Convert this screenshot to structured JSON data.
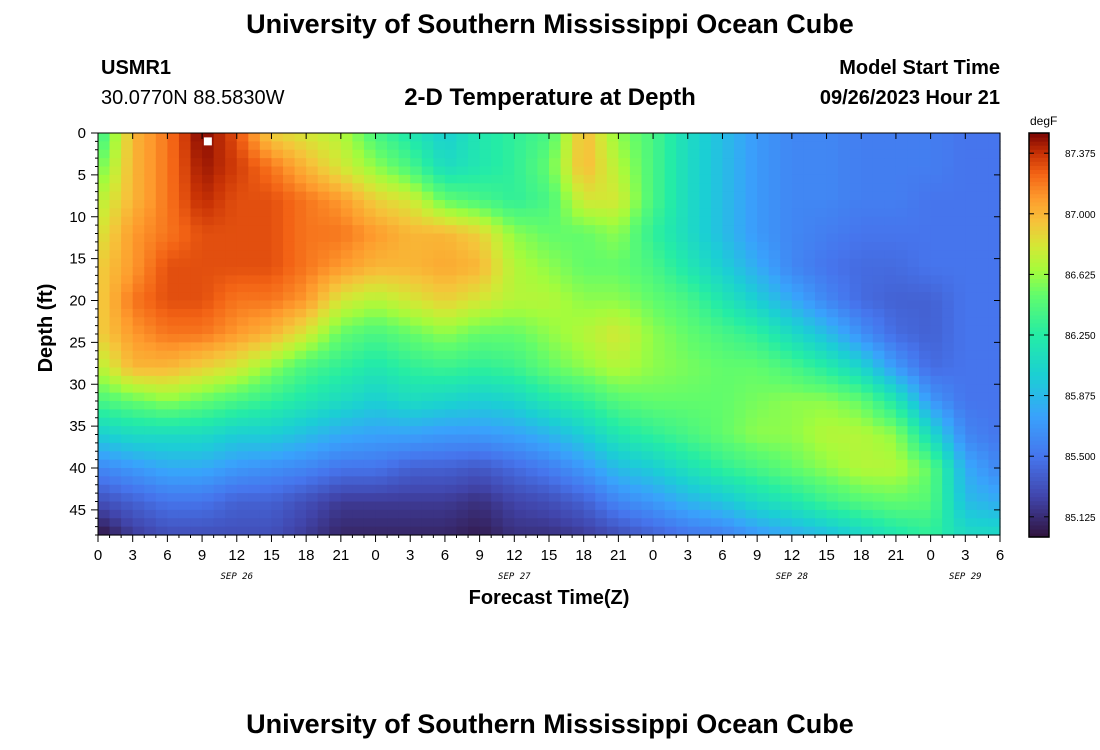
{
  "header": {
    "title": "University of Southern Mississippi Ocean Cube",
    "station_id": "USMR1",
    "station_coords": "30.0770N  88.5830W",
    "subtitle": "2-D Temperature at Depth",
    "model_start_label": "Model Start Time",
    "model_start_value": "09/26/2023 Hour 21"
  },
  "footer": {
    "title": "University of Southern Mississippi Ocean Cube"
  },
  "chart_data": {
    "type": "heatmap",
    "title": "2-D Temperature at Depth",
    "xlabel": "Forecast Time(Z)",
    "ylabel": "Depth (ft)",
    "x_range_hours": [
      0,
      78
    ],
    "y_range_ft": [
      0,
      48
    ],
    "x_tick_labels": [
      "0",
      "3",
      "6",
      "9",
      "12",
      "15",
      "18",
      "21",
      "0",
      "3",
      "6",
      "9",
      "12",
      "15",
      "18",
      "21",
      "0",
      "3",
      "6",
      "9",
      "12",
      "15",
      "18",
      "21",
      "0",
      "3",
      "6"
    ],
    "y_tick_labels": [
      "0",
      "5",
      "10",
      "15",
      "20",
      "25",
      "30",
      "35",
      "40",
      "45"
    ],
    "date_labels": [
      {
        "label": "SEP 26",
        "hour": 12
      },
      {
        "label": "SEP 27",
        "hour": 36
      },
      {
        "label": "SEP 28",
        "hour": 60
      },
      {
        "label": "SEP 29",
        "hour": 75
      }
    ],
    "colorbar": {
      "unit": "degF",
      "min": 85.0,
      "max": 87.5,
      "tick_labels": [
        "87.375",
        "87.000",
        "86.625",
        "86.250",
        "85.875",
        "85.500",
        "85.125"
      ]
    },
    "marker": {
      "hour": 9.5,
      "depth_ft": 1
    },
    "grid": false,
    "note": "Temperature field sampled as depth profiles (degF) at given forecast hours; depths 0,4,8,12,16,20,24,28,32,36,40,44,48 ft.",
    "profile_depths_ft": [
      0,
      4,
      8,
      12,
      16,
      20,
      24,
      28,
      32,
      36,
      40,
      44,
      48
    ],
    "profiles": [
      {
        "hour": 0,
        "values": [
          86.3,
          86.5,
          86.7,
          86.8,
          86.9,
          86.9,
          86.9,
          86.7,
          86.4,
          86.0,
          85.6,
          85.3,
          85.0
        ]
      },
      {
        "hour": 3,
        "values": [
          87.0,
          87.0,
          87.0,
          87.1,
          87.1,
          87.2,
          87.1,
          87.0,
          86.5,
          86.1,
          85.7,
          85.4,
          85.2
        ]
      },
      {
        "hour": 6,
        "values": [
          87.2,
          87.2,
          87.2,
          87.2,
          87.3,
          87.3,
          87.2,
          87.0,
          86.6,
          86.1,
          85.8,
          85.5,
          85.3
        ]
      },
      {
        "hour": 9,
        "values": [
          87.5,
          87.45,
          87.4,
          87.3,
          87.3,
          87.3,
          87.2,
          86.9,
          86.5,
          86.1,
          85.8,
          85.5,
          85.3
        ]
      },
      {
        "hour": 12,
        "values": [
          87.3,
          87.35,
          87.3,
          87.3,
          87.3,
          87.2,
          87.1,
          86.8,
          86.4,
          86.0,
          85.7,
          85.4,
          85.3
        ]
      },
      {
        "hour": 15,
        "values": [
          86.9,
          87.2,
          87.3,
          87.3,
          87.3,
          87.2,
          87.0,
          86.6,
          86.3,
          86.0,
          85.65,
          85.4,
          85.3
        ]
      },
      {
        "hour": 18,
        "values": [
          86.8,
          87.0,
          87.2,
          87.2,
          87.2,
          87.1,
          86.8,
          86.4,
          86.2,
          85.9,
          85.6,
          85.3,
          85.2
        ]
      },
      {
        "hour": 21,
        "values": [
          86.7,
          86.8,
          87.1,
          87.2,
          87.1,
          86.8,
          86.5,
          86.3,
          86.1,
          85.8,
          85.5,
          85.2,
          85.1
        ]
      },
      {
        "hour": 24,
        "values": [
          86.4,
          86.6,
          86.9,
          87.1,
          87.0,
          86.7,
          86.4,
          86.2,
          86.0,
          85.75,
          85.5,
          85.2,
          85.1
        ]
      },
      {
        "hour": 27,
        "values": [
          86.2,
          86.4,
          86.8,
          87.0,
          87.0,
          86.8,
          86.5,
          86.3,
          86.1,
          85.75,
          85.4,
          85.2,
          85.1
        ]
      },
      {
        "hour": 30,
        "values": [
          86.0,
          86.1,
          86.5,
          87.0,
          87.05,
          86.9,
          86.6,
          86.35,
          86.05,
          85.7,
          85.4,
          85.2,
          85.1
        ]
      },
      {
        "hour": 33,
        "values": [
          86.2,
          86.2,
          86.4,
          86.9,
          87.0,
          86.8,
          86.5,
          86.3,
          86.0,
          85.7,
          85.35,
          85.15,
          85.05
        ]
      },
      {
        "hour": 36,
        "values": [
          86.3,
          86.3,
          86.3,
          86.6,
          86.7,
          86.7,
          86.5,
          86.35,
          86.05,
          85.75,
          85.45,
          85.25,
          85.15
        ]
      },
      {
        "hour": 39,
        "values": [
          86.4,
          86.5,
          86.4,
          86.5,
          86.6,
          86.7,
          86.6,
          86.5,
          86.2,
          85.85,
          85.55,
          85.3,
          85.15
        ]
      },
      {
        "hour": 42,
        "values": [
          87.0,
          87.0,
          86.8,
          86.5,
          86.5,
          86.6,
          86.7,
          86.6,
          86.3,
          86.0,
          85.7,
          85.4,
          85.2
        ]
      },
      {
        "hour": 45,
        "values": [
          86.6,
          86.7,
          86.8,
          86.6,
          86.5,
          86.6,
          86.8,
          86.7,
          86.45,
          86.2,
          85.9,
          85.6,
          85.3
        ]
      },
      {
        "hour": 48,
        "values": [
          86.4,
          86.4,
          86.4,
          86.3,
          86.4,
          86.5,
          86.6,
          86.6,
          86.5,
          86.3,
          86.0,
          85.7,
          85.4
        ]
      },
      {
        "hour": 51,
        "values": [
          86.1,
          86.1,
          86.1,
          86.1,
          86.2,
          86.4,
          86.5,
          86.55,
          86.5,
          86.4,
          86.15,
          85.85,
          85.5
        ]
      },
      {
        "hour": 54,
        "values": [
          85.9,
          85.9,
          85.9,
          85.9,
          86.0,
          86.2,
          86.4,
          86.5,
          86.5,
          86.5,
          86.3,
          85.95,
          85.55
        ]
      },
      {
        "hour": 57,
        "values": [
          85.7,
          85.7,
          85.7,
          85.7,
          85.8,
          86.0,
          86.3,
          86.5,
          86.55,
          86.6,
          86.4,
          86.1,
          85.7
        ]
      },
      {
        "hour": 60,
        "values": [
          85.6,
          85.6,
          85.6,
          85.6,
          85.6,
          85.8,
          86.1,
          86.4,
          86.6,
          86.6,
          86.5,
          86.2,
          85.8
        ]
      },
      {
        "hour": 63,
        "values": [
          85.6,
          85.6,
          85.6,
          85.55,
          85.5,
          85.6,
          85.9,
          86.25,
          86.6,
          86.7,
          86.6,
          86.35,
          85.9
        ]
      },
      {
        "hour": 66,
        "values": [
          85.55,
          85.55,
          85.55,
          85.5,
          85.45,
          85.45,
          85.65,
          86.05,
          86.5,
          86.7,
          86.7,
          86.45,
          86.05
        ]
      },
      {
        "hour": 69,
        "values": [
          85.55,
          85.55,
          85.55,
          85.5,
          85.45,
          85.4,
          85.45,
          85.7,
          86.2,
          86.6,
          86.7,
          86.5,
          86.2
        ]
      },
      {
        "hour": 72,
        "values": [
          85.55,
          85.55,
          85.5,
          85.5,
          85.5,
          85.4,
          85.4,
          85.45,
          85.7,
          86.1,
          86.5,
          86.45,
          86.3
        ]
      },
      {
        "hour": 75,
        "values": [
          85.5,
          85.5,
          85.5,
          85.5,
          85.5,
          85.5,
          85.5,
          85.5,
          85.5,
          85.6,
          85.8,
          85.9,
          86.1
        ]
      },
      {
        "hour": 78,
        "values": [
          85.5,
          85.5,
          85.5,
          85.5,
          85.5,
          85.5,
          85.5,
          85.5,
          85.5,
          85.5,
          85.6,
          85.8,
          86.1
        ]
      }
    ]
  }
}
